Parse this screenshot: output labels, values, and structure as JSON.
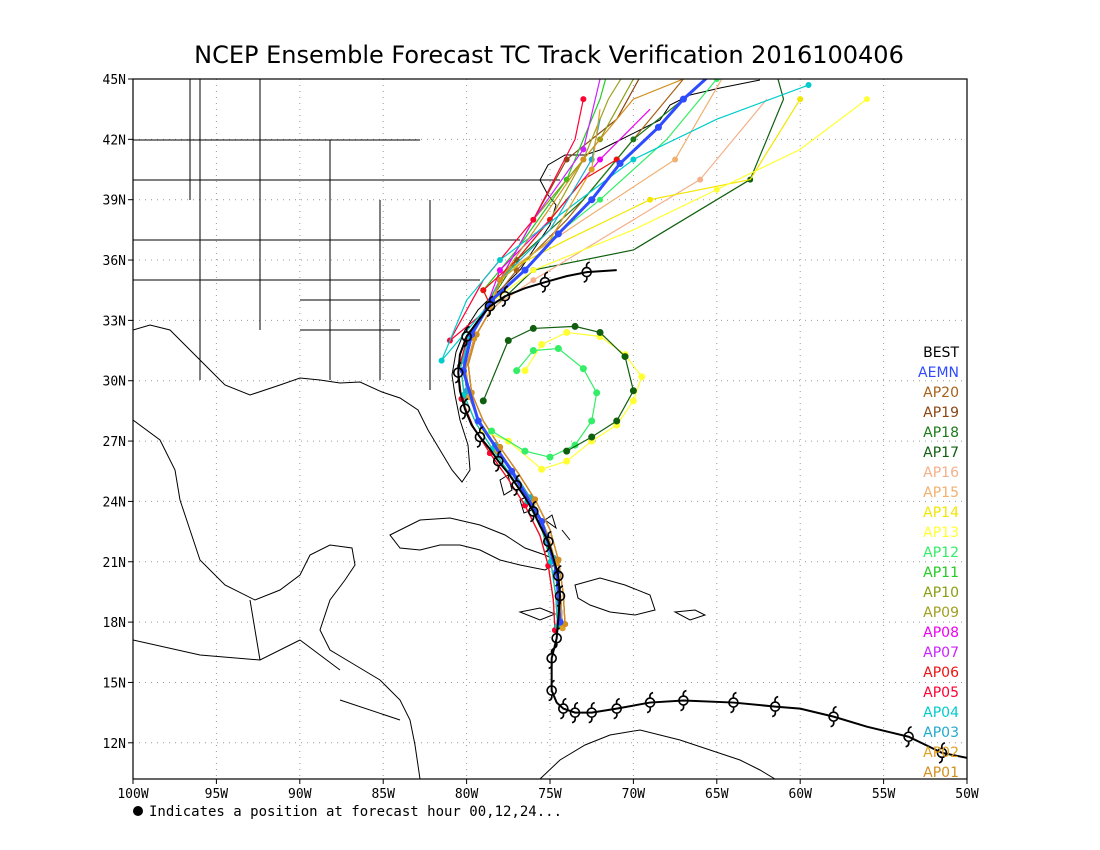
{
  "title": "NCEP Ensemble Forecast TC Track Verification 2016100406",
  "footnote": "Indicates a position at forecast hour 00,12,24...",
  "axes": {
    "lon_range": [
      -100,
      -50
    ],
    "lat_range": [
      10.2,
      45
    ],
    "x_ticks": [
      "100W",
      "95W",
      "90W",
      "85W",
      "80W",
      "75W",
      "70W",
      "65W",
      "60W",
      "55W",
      "50W"
    ],
    "x_tick_values": [
      -100,
      -95,
      -90,
      -85,
      -80,
      -75,
      -70,
      -65,
      -60,
      -55,
      -50
    ],
    "y_ticks": [
      "12N",
      "15N",
      "18N",
      "21N",
      "24N",
      "27N",
      "30N",
      "33N",
      "36N",
      "39N",
      "42N",
      "45N"
    ],
    "y_tick_values": [
      12,
      15,
      18,
      21,
      24,
      27,
      30,
      33,
      36,
      39,
      42,
      45
    ],
    "grid": "dotted"
  },
  "legend": [
    {
      "label": "BEST",
      "color": "#000000"
    },
    {
      "label": "AEMN",
      "color": "#2e4bff"
    },
    {
      "label": "AP20",
      "color": "#a5611a"
    },
    {
      "label": "AP19",
      "color": "#8b4513"
    },
    {
      "label": "AP18",
      "color": "#1b7a1b"
    },
    {
      "label": "AP17",
      "color": "#0f5f0f"
    },
    {
      "label": "AP16",
      "color": "#f5b08a"
    },
    {
      "label": "AP15",
      "color": "#f0b070"
    },
    {
      "label": "AP14",
      "color": "#f2e600"
    },
    {
      "label": "AP13",
      "color": "#ffff33"
    },
    {
      "label": "AP12",
      "color": "#33ee66"
    },
    {
      "label": "AP11",
      "color": "#22cc22"
    },
    {
      "label": "AP10",
      "color": "#88a011"
    },
    {
      "label": "AP09",
      "color": "#a0a020"
    },
    {
      "label": "AP08",
      "color": "#ee00ee"
    },
    {
      "label": "AP07",
      "color": "#cc22ff"
    },
    {
      "label": "AP06",
      "color": "#ee1111"
    },
    {
      "label": "AP05",
      "color": "#ff0033"
    },
    {
      "label": "AP04",
      "color": "#00cccc"
    },
    {
      "label": "AP03",
      "color": "#22aacc"
    },
    {
      "label": "AP02",
      "color": "#e0a020"
    },
    {
      "label": "AP01",
      "color": "#d2901e"
    }
  ],
  "best_track": [
    [
      -48.5,
      11.0
    ],
    [
      -51.5,
      11.5
    ],
    [
      -53.5,
      12.3
    ],
    [
      -56,
      12.8
    ],
    [
      -58,
      13.3
    ],
    [
      -60,
      13.7
    ],
    [
      -61.5,
      13.8
    ],
    [
      -64,
      14.0
    ],
    [
      -67,
      14.1
    ],
    [
      -69,
      14.0
    ],
    [
      -71,
      13.7
    ],
    [
      -72.5,
      13.5
    ],
    [
      -73.5,
      13.5
    ],
    [
      -74.2,
      13.7
    ],
    [
      -74.6,
      14.0
    ],
    [
      -74.9,
      14.6
    ],
    [
      -74.9,
      15.5
    ],
    [
      -74.9,
      16.2
    ],
    [
      -74.6,
      17.2
    ],
    [
      -74.5,
      18.2
    ],
    [
      -74.4,
      19.3
    ],
    [
      -74.5,
      20.3
    ],
    [
      -74.8,
      21.2
    ],
    [
      -75.1,
      22.0
    ],
    [
      -75.6,
      22.8
    ],
    [
      -76.0,
      23.5
    ],
    [
      -76.5,
      24.2
    ],
    [
      -77.0,
      24.8
    ],
    [
      -77.5,
      25.4
    ],
    [
      -78.1,
      26.0
    ],
    [
      -78.6,
      26.6
    ],
    [
      -79.2,
      27.2
    ],
    [
      -79.7,
      27.8
    ],
    [
      -80.1,
      28.6
    ],
    [
      -80.4,
      29.5
    ],
    [
      -80.5,
      30.4
    ],
    [
      -80.4,
      31.3
    ],
    [
      -80.0,
      32.2
    ],
    [
      -79.3,
      33.0
    ],
    [
      -78.6,
      33.7
    ],
    [
      -77.7,
      34.2
    ],
    [
      -76.5,
      34.6
    ],
    [
      -75.3,
      34.9
    ],
    [
      -74.0,
      35.2
    ],
    [
      -72.8,
      35.4
    ],
    [
      -71.0,
      35.5
    ]
  ],
  "best_markers": [
    [
      -51.5,
      11.5
    ],
    [
      -53.5,
      12.3
    ],
    [
      -58,
      13.3
    ],
    [
      -61.5,
      13.8
    ],
    [
      -64,
      14.0
    ],
    [
      -67,
      14.1
    ],
    [
      -69,
      14.0
    ],
    [
      -71,
      13.7
    ],
    [
      -72.5,
      13.5
    ],
    [
      -73.5,
      13.5
    ],
    [
      -74.2,
      13.7
    ],
    [
      -74.9,
      14.6
    ],
    [
      -74.9,
      16.2
    ],
    [
      -74.6,
      17.2
    ],
    [
      -74.4,
      19.3
    ],
    [
      -74.5,
      20.3
    ],
    [
      -75.1,
      22.0
    ],
    [
      -76.0,
      23.5
    ],
    [
      -77.0,
      24.8
    ],
    [
      -78.1,
      26.0
    ],
    [
      -79.2,
      27.2
    ],
    [
      -80.1,
      28.6
    ],
    [
      -80.5,
      30.4
    ],
    [
      -80.0,
      32.2
    ],
    [
      -78.6,
      33.7
    ],
    [
      -77.7,
      34.2
    ],
    [
      -75.3,
      34.9
    ],
    [
      -72.8,
      35.4
    ]
  ]
}
